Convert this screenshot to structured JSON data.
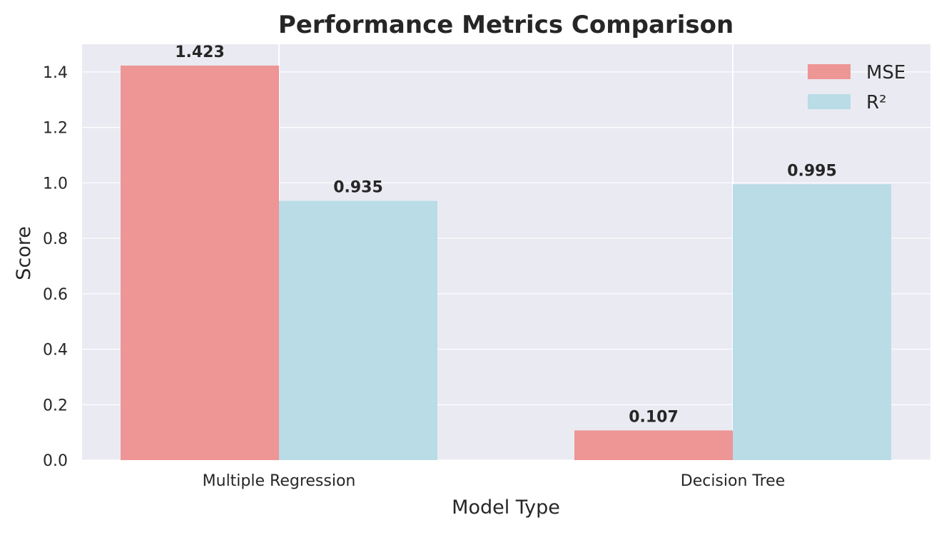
{
  "chart_data": {
    "type": "bar",
    "title": "Performance Metrics Comparison",
    "xlabel": "Model Type",
    "ylabel": "Score",
    "categories": [
      "Multiple Regression",
      "Decision Tree"
    ],
    "series": [
      {
        "name": "MSE",
        "values": [
          1.423,
          0.107
        ],
        "labels": [
          "1.423",
          "0.107"
        ],
        "color": "#ee9595"
      },
      {
        "name": "R²",
        "values": [
          0.935,
          0.995
        ],
        "labels": [
          "0.935",
          "0.995"
        ],
        "color": "#b9dce6"
      }
    ],
    "ylim": [
      0,
      1.5
    ],
    "yticks": [
      0.0,
      0.2,
      0.4,
      0.6,
      0.8,
      1.0,
      1.2,
      1.4
    ],
    "ytick_labels": [
      "0.0",
      "0.2",
      "0.4",
      "0.6",
      "0.8",
      "1.0",
      "1.2",
      "1.4"
    ],
    "grid": true,
    "legend_position": "top-right",
    "colors": {
      "plot_background": "#eaeaf2",
      "grid": "#ffffff",
      "text": "#262626"
    }
  }
}
